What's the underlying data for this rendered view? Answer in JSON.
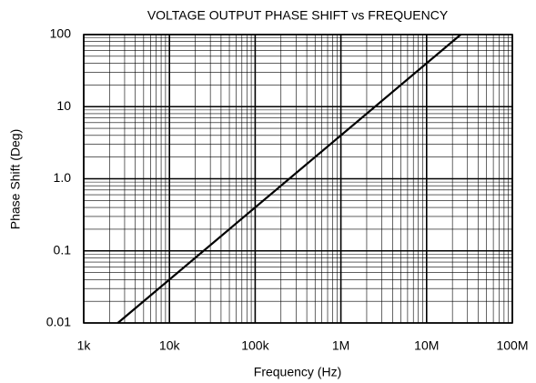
{
  "chart_data": {
    "type": "line",
    "title": "VOLTAGE OUTPUT PHASE SHIFT vs FREQUENCY",
    "xlabel": "Frequency (Hz)",
    "ylabel": "Phase Shift (Deg)",
    "x": [
      2500,
      25000000
    ],
    "values": [
      0.01,
      100
    ],
    "color": "#000000",
    "xscale": "log",
    "yscale": "log",
    "xlim": [
      1000,
      100000000
    ],
    "ylim": [
      0.01,
      100
    ],
    "xticks": [
      {
        "value": 1000,
        "label": "1k"
      },
      {
        "value": 10000,
        "label": "10k"
      },
      {
        "value": 100000,
        "label": "100k"
      },
      {
        "value": 1000000,
        "label": "1M"
      },
      {
        "value": 10000000,
        "label": "10M"
      },
      {
        "value": 100000000,
        "label": "100M"
      }
    ],
    "yticks": [
      0.01,
      0.1,
      {
        "value": 1,
        "label": "1.0"
      },
      10,
      100
    ],
    "grid": true,
    "minor_grid": true
  }
}
